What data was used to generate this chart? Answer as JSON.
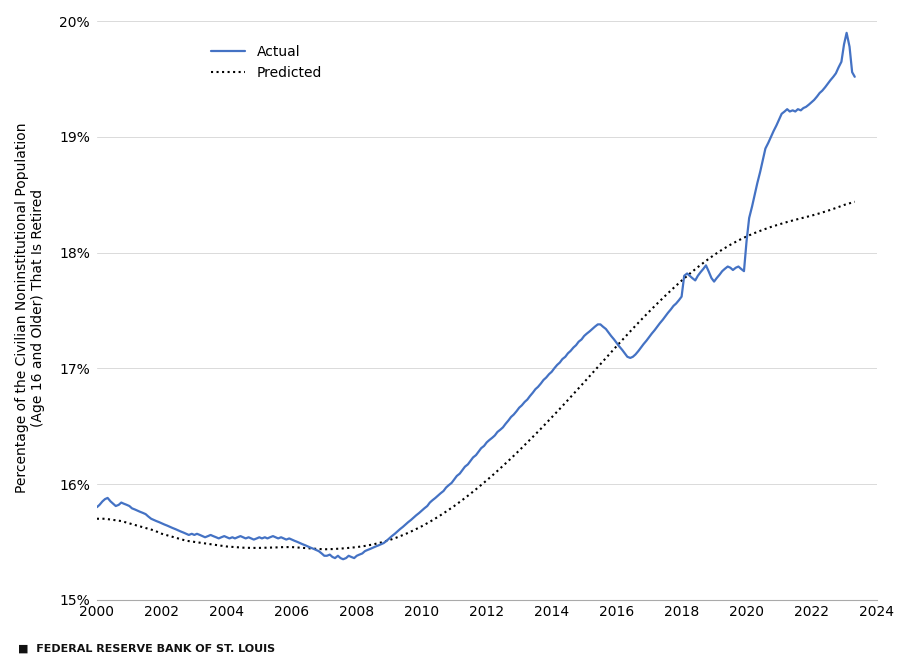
{
  "title": "",
  "ylabel": "Percentage of the Civilian Noninstitutional Population\n(Age 16 and Older) That Is Retired",
  "xlabel": "",
  "footnote": "■  FEDERAL RESERVE BANK OF ST. LOUIS",
  "actual_color": "#4472C4",
  "predicted_color": "#000000",
  "actual_linewidth": 1.6,
  "predicted_linewidth": 1.5,
  "ylim": [
    0.15,
    0.2005
  ],
  "xlim": [
    2000,
    2024
  ],
  "yticks": [
    0.15,
    0.16,
    0.17,
    0.18,
    0.19,
    0.2
  ],
  "xticks": [
    2000,
    2002,
    2004,
    2006,
    2008,
    2010,
    2012,
    2014,
    2016,
    2018,
    2020,
    2022,
    2024
  ],
  "background_color": "#ffffff",
  "actual_data": [
    [
      2000.0,
      0.158
    ],
    [
      2000.08,
      0.1582
    ],
    [
      2000.17,
      0.1585
    ],
    [
      2000.25,
      0.1587
    ],
    [
      2000.33,
      0.1588
    ],
    [
      2000.42,
      0.1585
    ],
    [
      2000.5,
      0.1583
    ],
    [
      2000.58,
      0.1581
    ],
    [
      2000.67,
      0.1582
    ],
    [
      2000.75,
      0.1584
    ],
    [
      2000.83,
      0.1583
    ],
    [
      2000.92,
      0.1582
    ],
    [
      2001.0,
      0.1581
    ],
    [
      2001.08,
      0.1579
    ],
    [
      2001.17,
      0.1578
    ],
    [
      2001.25,
      0.1577
    ],
    [
      2001.33,
      0.1576
    ],
    [
      2001.42,
      0.1575
    ],
    [
      2001.5,
      0.1574
    ],
    [
      2001.58,
      0.1572
    ],
    [
      2001.67,
      0.157
    ],
    [
      2001.75,
      0.1569
    ],
    [
      2001.83,
      0.1568
    ],
    [
      2001.92,
      0.1567
    ],
    [
      2002.0,
      0.1566
    ],
    [
      2002.08,
      0.1565
    ],
    [
      2002.17,
      0.1564
    ],
    [
      2002.25,
      0.1563
    ],
    [
      2002.33,
      0.1562
    ],
    [
      2002.42,
      0.1561
    ],
    [
      2002.5,
      0.156
    ],
    [
      2002.58,
      0.1559
    ],
    [
      2002.67,
      0.1558
    ],
    [
      2002.75,
      0.1557
    ],
    [
      2002.83,
      0.1556
    ],
    [
      2002.92,
      0.1557
    ],
    [
      2003.0,
      0.1556
    ],
    [
      2003.08,
      0.1557
    ],
    [
      2003.17,
      0.1556
    ],
    [
      2003.25,
      0.1555
    ],
    [
      2003.33,
      0.1554
    ],
    [
      2003.42,
      0.1555
    ],
    [
      2003.5,
      0.1556
    ],
    [
      2003.58,
      0.1555
    ],
    [
      2003.67,
      0.1554
    ],
    [
      2003.75,
      0.1553
    ],
    [
      2003.83,
      0.1554
    ],
    [
      2003.92,
      0.1555
    ],
    [
      2004.0,
      0.1554
    ],
    [
      2004.08,
      0.1553
    ],
    [
      2004.17,
      0.1554
    ],
    [
      2004.25,
      0.1553
    ],
    [
      2004.33,
      0.1554
    ],
    [
      2004.42,
      0.1555
    ],
    [
      2004.5,
      0.1554
    ],
    [
      2004.58,
      0.1553
    ],
    [
      2004.67,
      0.1554
    ],
    [
      2004.75,
      0.1553
    ],
    [
      2004.83,
      0.1552
    ],
    [
      2004.92,
      0.1553
    ],
    [
      2005.0,
      0.1554
    ],
    [
      2005.08,
      0.1553
    ],
    [
      2005.17,
      0.1554
    ],
    [
      2005.25,
      0.1553
    ],
    [
      2005.33,
      0.1554
    ],
    [
      2005.42,
      0.1555
    ],
    [
      2005.5,
      0.1554
    ],
    [
      2005.58,
      0.1553
    ],
    [
      2005.67,
      0.1554
    ],
    [
      2005.75,
      0.1553
    ],
    [
      2005.83,
      0.1552
    ],
    [
      2005.92,
      0.1553
    ],
    [
      2006.0,
      0.1552
    ],
    [
      2006.08,
      0.1551
    ],
    [
      2006.17,
      0.155
    ],
    [
      2006.25,
      0.1549
    ],
    [
      2006.33,
      0.1548
    ],
    [
      2006.42,
      0.1547
    ],
    [
      2006.5,
      0.1546
    ],
    [
      2006.58,
      0.1545
    ],
    [
      2006.67,
      0.1544
    ],
    [
      2006.75,
      0.1543
    ],
    [
      2006.83,
      0.1542
    ],
    [
      2006.92,
      0.154
    ],
    [
      2007.0,
      0.1538
    ],
    [
      2007.08,
      0.1538
    ],
    [
      2007.17,
      0.1539
    ],
    [
      2007.25,
      0.1537
    ],
    [
      2007.33,
      0.1536
    ],
    [
      2007.42,
      0.1538
    ],
    [
      2007.5,
      0.1536
    ],
    [
      2007.58,
      0.1535
    ],
    [
      2007.67,
      0.1536
    ],
    [
      2007.75,
      0.1538
    ],
    [
      2007.83,
      0.1537
    ],
    [
      2007.92,
      0.1536
    ],
    [
      2008.0,
      0.1538
    ],
    [
      2008.08,
      0.1539
    ],
    [
      2008.17,
      0.154
    ],
    [
      2008.25,
      0.1542
    ],
    [
      2008.33,
      0.1543
    ],
    [
      2008.42,
      0.1544
    ],
    [
      2008.5,
      0.1545
    ],
    [
      2008.58,
      0.1546
    ],
    [
      2008.67,
      0.1547
    ],
    [
      2008.75,
      0.1548
    ],
    [
      2008.83,
      0.1549
    ],
    [
      2008.92,
      0.1551
    ],
    [
      2009.0,
      0.1553
    ],
    [
      2009.08,
      0.1555
    ],
    [
      2009.17,
      0.1557
    ],
    [
      2009.25,
      0.1559
    ],
    [
      2009.33,
      0.1561
    ],
    [
      2009.42,
      0.1563
    ],
    [
      2009.5,
      0.1565
    ],
    [
      2009.58,
      0.1567
    ],
    [
      2009.67,
      0.1569
    ],
    [
      2009.75,
      0.1571
    ],
    [
      2009.83,
      0.1573
    ],
    [
      2009.92,
      0.1575
    ],
    [
      2010.0,
      0.1577
    ],
    [
      2010.08,
      0.1579
    ],
    [
      2010.17,
      0.1581
    ],
    [
      2010.25,
      0.1584
    ],
    [
      2010.33,
      0.1586
    ],
    [
      2010.42,
      0.1588
    ],
    [
      2010.5,
      0.159
    ],
    [
      2010.58,
      0.1592
    ],
    [
      2010.67,
      0.1594
    ],
    [
      2010.75,
      0.1597
    ],
    [
      2010.83,
      0.1599
    ],
    [
      2010.92,
      0.1601
    ],
    [
      2011.0,
      0.1604
    ],
    [
      2011.08,
      0.1607
    ],
    [
      2011.17,
      0.1609
    ],
    [
      2011.25,
      0.1612
    ],
    [
      2011.33,
      0.1615
    ],
    [
      2011.42,
      0.1617
    ],
    [
      2011.5,
      0.162
    ],
    [
      2011.58,
      0.1623
    ],
    [
      2011.67,
      0.1625
    ],
    [
      2011.75,
      0.1628
    ],
    [
      2011.83,
      0.1631
    ],
    [
      2011.92,
      0.1633
    ],
    [
      2012.0,
      0.1636
    ],
    [
      2012.08,
      0.1638
    ],
    [
      2012.17,
      0.164
    ],
    [
      2012.25,
      0.1642
    ],
    [
      2012.33,
      0.1645
    ],
    [
      2012.42,
      0.1647
    ],
    [
      2012.5,
      0.1649
    ],
    [
      2012.58,
      0.1652
    ],
    [
      2012.67,
      0.1655
    ],
    [
      2012.75,
      0.1658
    ],
    [
      2012.83,
      0.166
    ],
    [
      2012.92,
      0.1663
    ],
    [
      2013.0,
      0.1666
    ],
    [
      2013.08,
      0.1668
    ],
    [
      2013.17,
      0.1671
    ],
    [
      2013.25,
      0.1673
    ],
    [
      2013.33,
      0.1676
    ],
    [
      2013.42,
      0.1679
    ],
    [
      2013.5,
      0.1682
    ],
    [
      2013.58,
      0.1684
    ],
    [
      2013.67,
      0.1687
    ],
    [
      2013.75,
      0.169
    ],
    [
      2013.83,
      0.1692
    ],
    [
      2013.92,
      0.1695
    ],
    [
      2014.0,
      0.1697
    ],
    [
      2014.08,
      0.17
    ],
    [
      2014.17,
      0.1703
    ],
    [
      2014.25,
      0.1705
    ],
    [
      2014.33,
      0.1708
    ],
    [
      2014.42,
      0.171
    ],
    [
      2014.5,
      0.1713
    ],
    [
      2014.58,
      0.1715
    ],
    [
      2014.67,
      0.1718
    ],
    [
      2014.75,
      0.172
    ],
    [
      2014.83,
      0.1723
    ],
    [
      2014.92,
      0.1725
    ],
    [
      2015.0,
      0.1728
    ],
    [
      2015.08,
      0.173
    ],
    [
      2015.17,
      0.1732
    ],
    [
      2015.25,
      0.1734
    ],
    [
      2015.33,
      0.1736
    ],
    [
      2015.42,
      0.1738
    ],
    [
      2015.5,
      0.1738
    ],
    [
      2015.58,
      0.1736
    ],
    [
      2015.67,
      0.1734
    ],
    [
      2015.75,
      0.1731
    ],
    [
      2015.83,
      0.1728
    ],
    [
      2015.92,
      0.1725
    ],
    [
      2016.0,
      0.1722
    ],
    [
      2016.08,
      0.1719
    ],
    [
      2016.17,
      0.1716
    ],
    [
      2016.25,
      0.1713
    ],
    [
      2016.33,
      0.171
    ],
    [
      2016.42,
      0.1709
    ],
    [
      2016.5,
      0.171
    ],
    [
      2016.58,
      0.1712
    ],
    [
      2016.67,
      0.1715
    ],
    [
      2016.75,
      0.1718
    ],
    [
      2016.83,
      0.1721
    ],
    [
      2016.92,
      0.1724
    ],
    [
      2017.0,
      0.1727
    ],
    [
      2017.08,
      0.173
    ],
    [
      2017.17,
      0.1733
    ],
    [
      2017.25,
      0.1736
    ],
    [
      2017.33,
      0.1739
    ],
    [
      2017.42,
      0.1742
    ],
    [
      2017.5,
      0.1745
    ],
    [
      2017.58,
      0.1748
    ],
    [
      2017.67,
      0.1751
    ],
    [
      2017.75,
      0.1754
    ],
    [
      2017.83,
      0.1756
    ],
    [
      2017.92,
      0.1759
    ],
    [
      2018.0,
      0.1762
    ],
    [
      2018.08,
      0.178
    ],
    [
      2018.17,
      0.1782
    ],
    [
      2018.25,
      0.178
    ],
    [
      2018.33,
      0.1778
    ],
    [
      2018.42,
      0.1776
    ],
    [
      2018.5,
      0.178
    ],
    [
      2018.58,
      0.1783
    ],
    [
      2018.67,
      0.1786
    ],
    [
      2018.75,
      0.1789
    ],
    [
      2018.83,
      0.1784
    ],
    [
      2018.92,
      0.1778
    ],
    [
      2019.0,
      0.1775
    ],
    [
      2019.08,
      0.1778
    ],
    [
      2019.17,
      0.1781
    ],
    [
      2019.25,
      0.1784
    ],
    [
      2019.33,
      0.1786
    ],
    [
      2019.42,
      0.1788
    ],
    [
      2019.5,
      0.1787
    ],
    [
      2019.58,
      0.1785
    ],
    [
      2019.67,
      0.1787
    ],
    [
      2019.75,
      0.1788
    ],
    [
      2019.83,
      0.1786
    ],
    [
      2019.92,
      0.1784
    ],
    [
      2020.0,
      0.181
    ],
    [
      2020.08,
      0.183
    ],
    [
      2020.17,
      0.184
    ],
    [
      2020.25,
      0.185
    ],
    [
      2020.33,
      0.186
    ],
    [
      2020.42,
      0.187
    ],
    [
      2020.5,
      0.188
    ],
    [
      2020.58,
      0.189
    ],
    [
      2020.67,
      0.1895
    ],
    [
      2020.75,
      0.19
    ],
    [
      2020.83,
      0.1905
    ],
    [
      2020.92,
      0.191
    ],
    [
      2021.0,
      0.1915
    ],
    [
      2021.08,
      0.192
    ],
    [
      2021.17,
      0.1922
    ],
    [
      2021.25,
      0.1924
    ],
    [
      2021.33,
      0.1922
    ],
    [
      2021.42,
      0.1923
    ],
    [
      2021.5,
      0.1922
    ],
    [
      2021.58,
      0.1924
    ],
    [
      2021.67,
      0.1923
    ],
    [
      2021.75,
      0.1925
    ],
    [
      2021.83,
      0.1926
    ],
    [
      2021.92,
      0.1928
    ],
    [
      2022.0,
      0.193
    ],
    [
      2022.08,
      0.1932
    ],
    [
      2022.17,
      0.1935
    ],
    [
      2022.25,
      0.1938
    ],
    [
      2022.33,
      0.194
    ],
    [
      2022.42,
      0.1943
    ],
    [
      2022.5,
      0.1946
    ],
    [
      2022.58,
      0.1949
    ],
    [
      2022.67,
      0.1952
    ],
    [
      2022.75,
      0.1955
    ],
    [
      2022.83,
      0.196
    ],
    [
      2022.92,
      0.1965
    ],
    [
      2023.0,
      0.198
    ],
    [
      2023.08,
      0.199
    ],
    [
      2023.17,
      0.1978
    ],
    [
      2023.25,
      0.1956
    ],
    [
      2023.33,
      0.1952
    ]
  ],
  "predicted_data": [
    [
      2000.0,
      0.157
    ],
    [
      2000.25,
      0.157
    ],
    [
      2000.5,
      0.1569
    ],
    [
      2000.75,
      0.1568
    ],
    [
      2001.0,
      0.1566
    ],
    [
      2001.25,
      0.1564
    ],
    [
      2001.5,
      0.1562
    ],
    [
      2001.75,
      0.156
    ],
    [
      2002.0,
      0.1557
    ],
    [
      2002.25,
      0.1555
    ],
    [
      2002.5,
      0.1553
    ],
    [
      2002.75,
      0.1551
    ],
    [
      2003.0,
      0.155
    ],
    [
      2003.25,
      0.1549
    ],
    [
      2003.5,
      0.1548
    ],
    [
      2003.75,
      0.1547
    ],
    [
      2004.0,
      0.1546
    ],
    [
      2004.25,
      0.15455
    ],
    [
      2004.5,
      0.1545
    ],
    [
      2004.75,
      0.15448
    ],
    [
      2005.0,
      0.15448
    ],
    [
      2005.25,
      0.1545
    ],
    [
      2005.5,
      0.15452
    ],
    [
      2005.75,
      0.15455
    ],
    [
      2006.0,
      0.15455
    ],
    [
      2006.25,
      0.1545
    ],
    [
      2006.5,
      0.15445
    ],
    [
      2006.75,
      0.1544
    ],
    [
      2007.0,
      0.15436
    ],
    [
      2007.25,
      0.15438
    ],
    [
      2007.5,
      0.15442
    ],
    [
      2007.75,
      0.15448
    ],
    [
      2008.0,
      0.15455
    ],
    [
      2008.25,
      0.15465
    ],
    [
      2008.5,
      0.15478
    ],
    [
      2008.75,
      0.15495
    ],
    [
      2009.0,
      0.15515
    ],
    [
      2009.25,
      0.1554
    ],
    [
      2009.5,
      0.15568
    ],
    [
      2009.75,
      0.156
    ],
    [
      2010.0,
      0.15635
    ],
    [
      2010.25,
      0.15674
    ],
    [
      2010.5,
      0.15716
    ],
    [
      2010.75,
      0.15762
    ],
    [
      2011.0,
      0.1581
    ],
    [
      2011.25,
      0.15862
    ],
    [
      2011.5,
      0.15916
    ],
    [
      2011.75,
      0.15973
    ],
    [
      2012.0,
      0.16032
    ],
    [
      2012.25,
      0.16093
    ],
    [
      2012.5,
      0.16157
    ],
    [
      2012.75,
      0.16222
    ],
    [
      2013.0,
      0.1629
    ],
    [
      2013.25,
      0.1636
    ],
    [
      2013.5,
      0.1643
    ],
    [
      2013.75,
      0.16502
    ],
    [
      2014.0,
      0.16576
    ],
    [
      2014.25,
      0.1665
    ],
    [
      2014.5,
      0.16726
    ],
    [
      2014.75,
      0.16803
    ],
    [
      2015.0,
      0.1688
    ],
    [
      2015.25,
      0.16958
    ],
    [
      2015.5,
      0.17036
    ],
    [
      2015.75,
      0.17114
    ],
    [
      2016.0,
      0.17192
    ],
    [
      2016.25,
      0.17268
    ],
    [
      2016.5,
      0.17344
    ],
    [
      2016.75,
      0.17418
    ],
    [
      2017.0,
      0.1749
    ],
    [
      2017.25,
      0.1756
    ],
    [
      2017.5,
      0.17628
    ],
    [
      2017.75,
      0.17694
    ],
    [
      2018.0,
      0.17758
    ],
    [
      2018.25,
      0.17818
    ],
    [
      2018.5,
      0.17875
    ],
    [
      2018.75,
      0.17929
    ],
    [
      2019.0,
      0.1798
    ],
    [
      2019.25,
      0.18026
    ],
    [
      2019.5,
      0.18068
    ],
    [
      2019.75,
      0.18106
    ],
    [
      2020.0,
      0.1814
    ],
    [
      2020.25,
      0.1817
    ],
    [
      2020.5,
      0.18197
    ],
    [
      2020.75,
      0.18222
    ],
    [
      2021.0,
      0.18244
    ],
    [
      2021.25,
      0.18265
    ],
    [
      2021.5,
      0.18284
    ],
    [
      2021.75,
      0.18302
    ],
    [
      2022.0,
      0.1832
    ],
    [
      2022.25,
      0.1834
    ],
    [
      2022.5,
      0.18362
    ],
    [
      2022.75,
      0.18386
    ],
    [
      2023.0,
      0.18412
    ],
    [
      2023.33,
      0.1844
    ]
  ]
}
